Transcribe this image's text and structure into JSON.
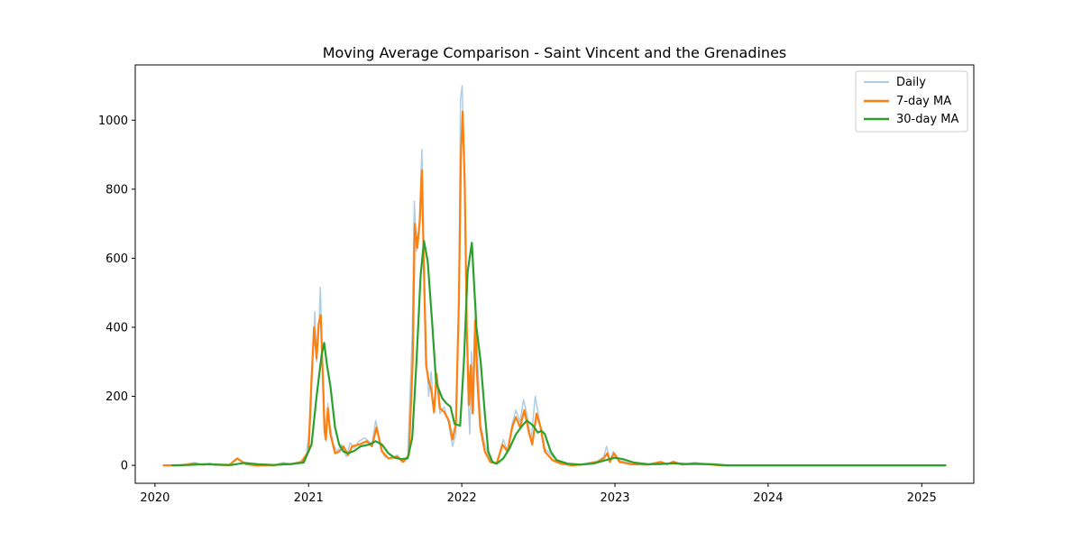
{
  "chart_data": {
    "type": "line",
    "title": "Moving Average Comparison - Saint Vincent and the Grenadines",
    "xlabel": "",
    "ylabel": "",
    "xlim": [
      "2019-11-15",
      "2025-05-05"
    ],
    "ylim": [
      -52,
      1160
    ],
    "x_ticks": [
      "2020-01-01",
      "2021-01-01",
      "2022-01-01",
      "2023-01-01",
      "2024-01-01",
      "2025-01-01"
    ],
    "x_tick_labels": [
      "2020",
      "2021",
      "2022",
      "2023",
      "2024",
      "2025"
    ],
    "y_ticks": [
      0,
      200,
      400,
      600,
      800,
      1000
    ],
    "y_tick_labels": [
      "0",
      "200",
      "400",
      "600",
      "800",
      "1000"
    ],
    "grid": false,
    "legend_position": "top-right",
    "series": [
      {
        "name": "Daily",
        "color": "#aecde3",
        "points": [
          [
            "2020-01-20",
            0
          ],
          [
            "2020-03-01",
            0
          ],
          [
            "2020-04-05",
            8
          ],
          [
            "2020-04-20",
            2
          ],
          [
            "2020-05-10",
            6
          ],
          [
            "2020-05-25",
            0
          ],
          [
            "2020-06-25",
            0
          ],
          [
            "2020-07-15",
            20
          ],
          [
            "2020-08-05",
            3
          ],
          [
            "2020-09-01",
            0
          ],
          [
            "2020-10-10",
            0
          ],
          [
            "2020-11-01",
            8
          ],
          [
            "2020-11-20",
            3
          ],
          [
            "2020-12-10",
            10
          ],
          [
            "2020-12-25",
            15
          ],
          [
            "2021-01-05",
            120
          ],
          [
            "2021-01-12",
            350
          ],
          [
            "2021-01-16",
            445
          ],
          [
            "2021-01-20",
            300
          ],
          [
            "2021-01-25",
            380
          ],
          [
            "2021-01-29",
            515
          ],
          [
            "2021-02-03",
            300
          ],
          [
            "2021-02-08",
            150
          ],
          [
            "2021-02-12",
            70
          ],
          [
            "2021-02-16",
            180
          ],
          [
            "2021-02-20",
            120
          ],
          [
            "2021-03-01",
            60
          ],
          [
            "2021-03-10",
            40
          ],
          [
            "2021-03-20",
            60
          ],
          [
            "2021-04-01",
            25
          ],
          [
            "2021-04-10",
            65
          ],
          [
            "2021-04-20",
            50
          ],
          [
            "2021-05-01",
            70
          ],
          [
            "2021-05-15",
            80
          ],
          [
            "2021-06-01",
            60
          ],
          [
            "2021-06-10",
            130
          ],
          [
            "2021-06-20",
            60
          ],
          [
            "2021-07-01",
            25
          ],
          [
            "2021-07-15",
            20
          ],
          [
            "2021-08-01",
            30
          ],
          [
            "2021-08-10",
            10
          ],
          [
            "2021-08-25",
            20
          ],
          [
            "2021-09-05",
            380
          ],
          [
            "2021-09-10",
            765
          ],
          [
            "2021-09-15",
            620
          ],
          [
            "2021-09-22",
            700
          ],
          [
            "2021-09-28",
            915
          ],
          [
            "2021-10-03",
            600
          ],
          [
            "2021-10-08",
            330
          ],
          [
            "2021-10-14",
            200
          ],
          [
            "2021-10-20",
            270
          ],
          [
            "2021-10-26",
            150
          ],
          [
            "2021-11-01",
            260
          ],
          [
            "2021-11-10",
            150
          ],
          [
            "2021-11-20",
            170
          ],
          [
            "2021-12-01",
            120
          ],
          [
            "2021-12-10",
            55
          ],
          [
            "2021-12-18",
            90
          ],
          [
            "2021-12-25",
            500
          ],
          [
            "2021-12-29",
            1060
          ],
          [
            "2022-01-02",
            1100
          ],
          [
            "2022-01-07",
            850
          ],
          [
            "2022-01-12",
            450
          ],
          [
            "2022-01-16",
            200
          ],
          [
            "2022-01-20",
            90
          ],
          [
            "2022-01-24",
            330
          ],
          [
            "2022-01-29",
            160
          ],
          [
            "2022-02-03",
            480
          ],
          [
            "2022-02-08",
            300
          ],
          [
            "2022-02-15",
            120
          ],
          [
            "2022-02-25",
            60
          ],
          [
            "2022-03-10",
            15
          ],
          [
            "2022-03-25",
            5
          ],
          [
            "2022-04-10",
            75
          ],
          [
            "2022-04-20",
            40
          ],
          [
            "2022-05-01",
            120
          ],
          [
            "2022-05-10",
            160
          ],
          [
            "2022-05-20",
            125
          ],
          [
            "2022-05-28",
            190
          ],
          [
            "2022-06-05",
            150
          ],
          [
            "2022-06-15",
            70
          ],
          [
            "2022-06-25",
            200
          ],
          [
            "2022-07-05",
            130
          ],
          [
            "2022-07-15",
            50
          ],
          [
            "2022-07-25",
            40
          ],
          [
            "2022-08-10",
            20
          ],
          [
            "2022-08-25",
            10
          ],
          [
            "2022-09-20",
            0
          ],
          [
            "2022-10-20",
            5
          ],
          [
            "2022-11-20",
            12
          ],
          [
            "2022-12-05",
            25
          ],
          [
            "2022-12-12",
            55
          ],
          [
            "2022-12-20",
            15
          ],
          [
            "2022-12-28",
            40
          ],
          [
            "2023-01-10",
            15
          ],
          [
            "2023-02-10",
            5
          ],
          [
            "2023-03-20",
            2
          ],
          [
            "2023-04-20",
            10
          ],
          [
            "2023-05-05",
            4
          ],
          [
            "2023-05-20",
            12
          ],
          [
            "2023-06-10",
            3
          ],
          [
            "2023-07-10",
            8
          ],
          [
            "2023-08-10",
            4
          ],
          [
            "2023-09-10",
            0
          ],
          [
            "2024-06-01",
            0
          ],
          [
            "2025-02-28",
            0
          ]
        ]
      },
      {
        "name": "7-day MA",
        "color": "#ff7f0e",
        "points": [
          [
            "2020-01-20",
            0
          ],
          [
            "2020-03-01",
            0
          ],
          [
            "2020-04-05",
            5
          ],
          [
            "2020-04-25",
            2
          ],
          [
            "2020-05-10",
            4
          ],
          [
            "2020-06-25",
            0
          ],
          [
            "2020-07-15",
            20
          ],
          [
            "2020-08-05",
            3
          ],
          [
            "2020-09-01",
            0
          ],
          [
            "2020-10-10",
            0
          ],
          [
            "2020-11-01",
            5
          ],
          [
            "2020-11-20",
            3
          ],
          [
            "2020-12-15",
            10
          ],
          [
            "2021-01-01",
            40
          ],
          [
            "2021-01-08",
            250
          ],
          [
            "2021-01-14",
            400
          ],
          [
            "2021-01-20",
            310
          ],
          [
            "2021-01-25",
            410
          ],
          [
            "2021-01-30",
            435
          ],
          [
            "2021-02-04",
            250
          ],
          [
            "2021-02-08",
            100
          ],
          [
            "2021-02-11",
            75
          ],
          [
            "2021-02-16",
            165
          ],
          [
            "2021-02-22",
            90
          ],
          [
            "2021-03-05",
            35
          ],
          [
            "2021-03-15",
            40
          ],
          [
            "2021-03-25",
            55
          ],
          [
            "2021-04-05",
            30
          ],
          [
            "2021-04-15",
            55
          ],
          [
            "2021-05-01",
            60
          ],
          [
            "2021-05-20",
            70
          ],
          [
            "2021-06-01",
            55
          ],
          [
            "2021-06-12",
            110
          ],
          [
            "2021-06-25",
            40
          ],
          [
            "2021-07-10",
            20
          ],
          [
            "2021-08-01",
            25
          ],
          [
            "2021-08-15",
            10
          ],
          [
            "2021-08-28",
            30
          ],
          [
            "2021-09-06",
            300
          ],
          [
            "2021-09-11",
            700
          ],
          [
            "2021-09-17",
            630
          ],
          [
            "2021-09-23",
            710
          ],
          [
            "2021-09-28",
            855
          ],
          [
            "2021-10-03",
            560
          ],
          [
            "2021-10-08",
            290
          ],
          [
            "2021-10-14",
            245
          ],
          [
            "2021-10-20",
            220
          ],
          [
            "2021-10-27",
            155
          ],
          [
            "2021-11-02",
            265
          ],
          [
            "2021-11-10",
            165
          ],
          [
            "2021-11-20",
            155
          ],
          [
            "2021-12-01",
            130
          ],
          [
            "2021-12-10",
            75
          ],
          [
            "2021-12-18",
            120
          ],
          [
            "2021-12-25",
            470
          ],
          [
            "2021-12-30",
            900
          ],
          [
            "2022-01-03",
            1025
          ],
          [
            "2022-01-08",
            820
          ],
          [
            "2022-01-13",
            400
          ],
          [
            "2022-01-18",
            175
          ],
          [
            "2022-01-22",
            290
          ],
          [
            "2022-01-27",
            150
          ],
          [
            "2022-02-02",
            420
          ],
          [
            "2022-02-07",
            245
          ],
          [
            "2022-02-14",
            110
          ],
          [
            "2022-02-25",
            40
          ],
          [
            "2022-03-10",
            10
          ],
          [
            "2022-03-25",
            5
          ],
          [
            "2022-04-08",
            60
          ],
          [
            "2022-04-20",
            40
          ],
          [
            "2022-05-01",
            110
          ],
          [
            "2022-05-10",
            140
          ],
          [
            "2022-05-20",
            110
          ],
          [
            "2022-05-30",
            160
          ],
          [
            "2022-06-10",
            95
          ],
          [
            "2022-06-18",
            60
          ],
          [
            "2022-06-28",
            150
          ],
          [
            "2022-07-08",
            110
          ],
          [
            "2022-07-18",
            40
          ],
          [
            "2022-08-05",
            15
          ],
          [
            "2022-08-25",
            5
          ],
          [
            "2022-09-20",
            0
          ],
          [
            "2022-10-20",
            3
          ],
          [
            "2022-11-20",
            10
          ],
          [
            "2022-12-05",
            20
          ],
          [
            "2022-12-14",
            35
          ],
          [
            "2022-12-20",
            10
          ],
          [
            "2022-12-30",
            35
          ],
          [
            "2023-01-12",
            10
          ],
          [
            "2023-02-10",
            3
          ],
          [
            "2023-03-20",
            2
          ],
          [
            "2023-04-20",
            10
          ],
          [
            "2023-05-05",
            3
          ],
          [
            "2023-05-20",
            10
          ],
          [
            "2023-06-10",
            2
          ],
          [
            "2023-07-10",
            6
          ],
          [
            "2023-08-10",
            3
          ],
          [
            "2023-09-10",
            0
          ],
          [
            "2024-06-01",
            0
          ],
          [
            "2025-02-28",
            0
          ]
        ]
      },
      {
        "name": "30-day MA",
        "color": "#2ca02c",
        "points": [
          [
            "2020-02-10",
            0
          ],
          [
            "2020-03-20",
            1
          ],
          [
            "2020-04-25",
            3
          ],
          [
            "2020-06-01",
            2
          ],
          [
            "2020-07-01",
            1
          ],
          [
            "2020-08-01",
            7
          ],
          [
            "2020-09-01",
            3
          ],
          [
            "2020-10-10",
            1
          ],
          [
            "2020-11-20",
            4
          ],
          [
            "2020-12-20",
            8
          ],
          [
            "2021-01-08",
            60
          ],
          [
            "2021-01-20",
            200
          ],
          [
            "2021-02-01",
            320
          ],
          [
            "2021-02-07",
            355
          ],
          [
            "2021-02-14",
            290
          ],
          [
            "2021-02-22",
            230
          ],
          [
            "2021-03-05",
            110
          ],
          [
            "2021-03-15",
            60
          ],
          [
            "2021-03-25",
            40
          ],
          [
            "2021-04-05",
            35
          ],
          [
            "2021-04-20",
            42
          ],
          [
            "2021-05-05",
            55
          ],
          [
            "2021-05-25",
            60
          ],
          [
            "2021-06-10",
            70
          ],
          [
            "2021-06-25",
            60
          ],
          [
            "2021-07-10",
            35
          ],
          [
            "2021-07-25",
            22
          ],
          [
            "2021-08-10",
            18
          ],
          [
            "2021-08-25",
            20
          ],
          [
            "2021-09-05",
            80
          ],
          [
            "2021-09-15",
            300
          ],
          [
            "2021-09-25",
            550
          ],
          [
            "2021-10-03",
            650
          ],
          [
            "2021-10-12",
            590
          ],
          [
            "2021-10-22",
            420
          ],
          [
            "2021-11-01",
            240
          ],
          [
            "2021-11-15",
            195
          ],
          [
            "2021-11-25",
            180
          ],
          [
            "2021-12-05",
            170
          ],
          [
            "2021-12-15",
            120
          ],
          [
            "2021-12-28",
            115
          ],
          [
            "2022-01-06",
            300
          ],
          [
            "2022-01-15",
            560
          ],
          [
            "2022-01-25",
            645
          ],
          [
            "2022-02-05",
            400
          ],
          [
            "2022-02-15",
            300
          ],
          [
            "2022-02-25",
            150
          ],
          [
            "2022-03-05",
            40
          ],
          [
            "2022-03-15",
            10
          ],
          [
            "2022-03-25",
            5
          ],
          [
            "2022-04-10",
            20
          ],
          [
            "2022-04-25",
            50
          ],
          [
            "2022-05-10",
            90
          ],
          [
            "2022-05-25",
            115
          ],
          [
            "2022-06-05",
            130
          ],
          [
            "2022-06-20",
            115
          ],
          [
            "2022-07-01",
            95
          ],
          [
            "2022-07-10",
            100
          ],
          [
            "2022-07-18",
            90
          ],
          [
            "2022-08-01",
            40
          ],
          [
            "2022-08-15",
            15
          ],
          [
            "2022-09-10",
            5
          ],
          [
            "2022-10-10",
            2
          ],
          [
            "2022-11-10",
            5
          ],
          [
            "2022-12-10",
            15
          ],
          [
            "2023-01-01",
            22
          ],
          [
            "2023-01-20",
            18
          ],
          [
            "2023-02-15",
            8
          ],
          [
            "2023-03-20",
            3
          ],
          [
            "2023-04-20",
            4
          ],
          [
            "2023-05-20",
            6
          ],
          [
            "2023-06-20",
            4
          ],
          [
            "2023-07-20",
            4
          ],
          [
            "2023-08-20",
            3
          ],
          [
            "2023-09-25",
            0
          ],
          [
            "2024-06-01",
            0
          ],
          [
            "2025-02-28",
            0
          ]
        ]
      }
    ]
  }
}
